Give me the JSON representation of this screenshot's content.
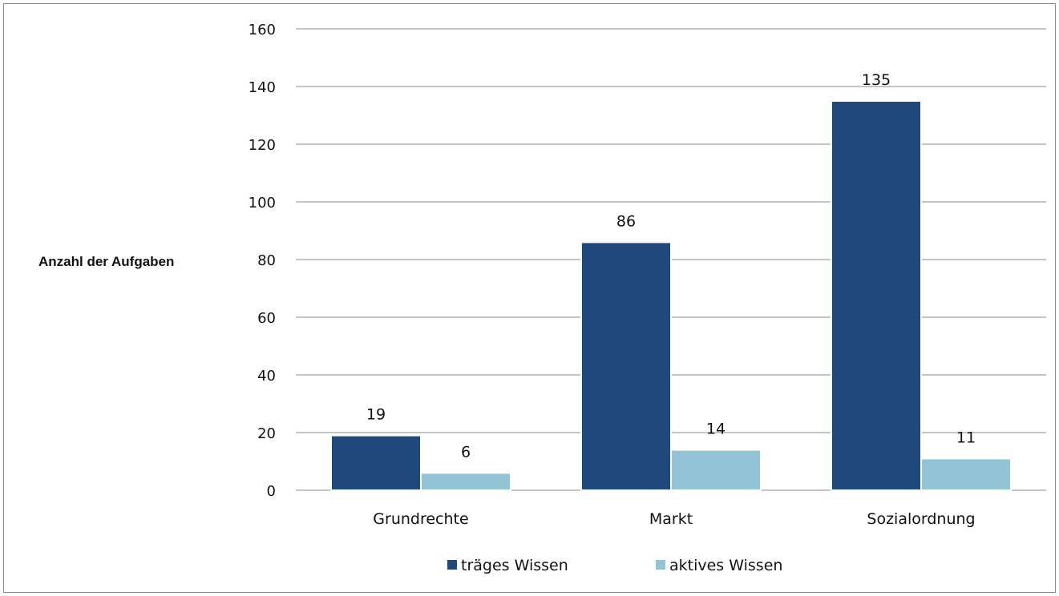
{
  "chart_data": {
    "type": "bar",
    "title": "",
    "xlabel": "",
    "ylabel": "Anzahl der Aufgaben",
    "categories": [
      "Grundrechte",
      "Markt",
      "Sozialordnung"
    ],
    "series": [
      {
        "name": "träges Wissen",
        "values": [
          19,
          86,
          135
        ],
        "color": "#1f497d"
      },
      {
        "name": "aktives Wissen",
        "values": [
          6,
          14,
          11
        ],
        "color": "#93c4d5"
      }
    ],
    "ylim": [
      0,
      160
    ],
    "yticks": [
      0,
      20,
      40,
      60,
      80,
      100,
      120,
      140,
      160
    ],
    "grid": true,
    "legend_position": "bottom",
    "data_labels": true
  }
}
